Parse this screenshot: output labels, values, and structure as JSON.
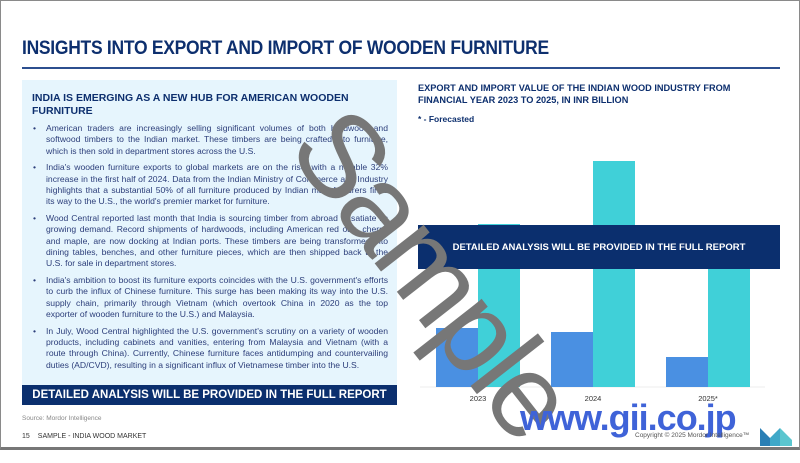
{
  "page": {
    "title": "INSIGHTS INTO EXPORT AND IMPORT OF WOODEN FURNITURE",
    "panel": {
      "heading": "INDIA IS EMERGING AS A NEW HUB FOR AMERICAN WOODEN FURNITURE",
      "bullets": [
        "American traders are increasingly selling significant volumes of both hardwood and softwood timbers to the Indian market. These timbers are being crafted into furniture, which is then sold in department stores across the U.S.",
        "India's wooden furniture exports to global markets are on the rise, with a notable 32% increase in the first half of 2024. Data from the Indian Ministry of Commerce and Industry highlights that a substantial 50% of all furniture produced by Indian manufacturers finds its way to the U.S., the world's premier market for furniture.",
        "Wood Central reported last month that India is sourcing timber from abroad to satiate its growing demand. Record shipments of hardwoods, including American red oak, cherry, and maple, are now docking at Indian ports. These timbers are being transformed into dining tables, benches, and other furniture pieces, which are then shipped back to the U.S. for sale in department stores.",
        "India's ambition to boost its furniture exports coincides with the U.S. government's efforts to curb the influx of Chinese furniture. This surge has been making its way into the U.S. supply chain, primarily through Vietnam (which overtook China in 2020 as the top exporter of wooden furniture to the U.S.) and Malaysia.",
        "In July, Wood Central highlighted the U.S. government's scrutiny on a variety of wooden products, including cabinets and vanities, entering from Malaysia and Vietnam (with a route through China). Currently, Chinese furniture faces antidumping and countervailing duties (AD/CVD), resulting in a significant influx of Vietnamese timber into the U.S."
      ],
      "banner": "DETAILED ANALYSIS WILL BE PROVIDED IN THE FULL REPORT"
    },
    "source": "Source: Mordor Intelligence",
    "footer": {
      "page_number": "15",
      "label": "SAMPLE - INDIA WOOD MARKET"
    },
    "chart_banner": "DETAILED ANALYSIS WILL BE PROVIDED IN THE FULL REPORT",
    "copyright": "Copyright © 2025 Mordor Intelligence™",
    "watermark": "Sample",
    "site_watermark": "www.gii.co.jp"
  },
  "chart_data": {
    "type": "bar",
    "title": "EXPORT AND IMPORT VALUE OF THE INDIAN WOOD INDUSTRY FROM FINANCIAL YEAR 2023 TO 2025, IN INR BILLION",
    "note": "* - Forecasted",
    "categories": [
      "2023",
      "2024",
      "2025*"
    ],
    "series": [
      {
        "values": [
          59,
          55,
          30
        ],
        "color": "#4a90e2"
      },
      {
        "values": [
          163,
          226,
          160
        ],
        "color": "#40d0d8"
      }
    ],
    "ylim": [
      0,
      240
    ],
    "grid": false,
    "y_axis_shown": false
  }
}
